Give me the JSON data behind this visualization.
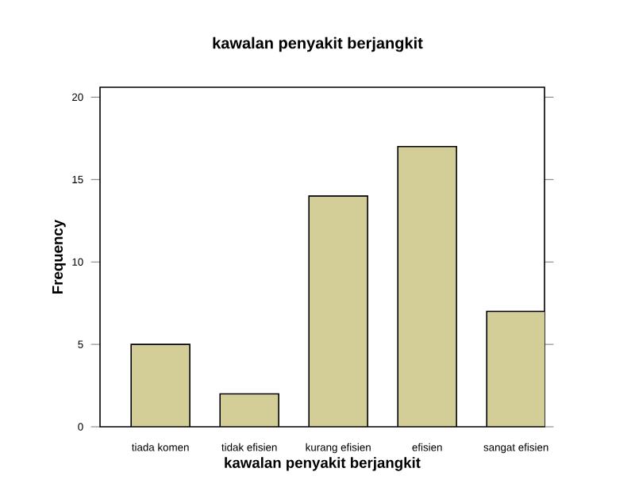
{
  "chart_data": {
    "type": "bar",
    "title": "kawalan penyakit berjangkit",
    "xlabel": "kawalan penyakit berjangkit",
    "ylabel": "Frequency",
    "categories": [
      "tiada komen",
      "tidak efisien",
      "kurang efisien",
      "efisien",
      "sangat efisien"
    ],
    "values": [
      5,
      2,
      14,
      17,
      7
    ],
    "color": "#d3cd98",
    "ylim": [
      0,
      20.6
    ],
    "yticks": [
      0,
      5,
      10,
      15,
      20
    ]
  }
}
